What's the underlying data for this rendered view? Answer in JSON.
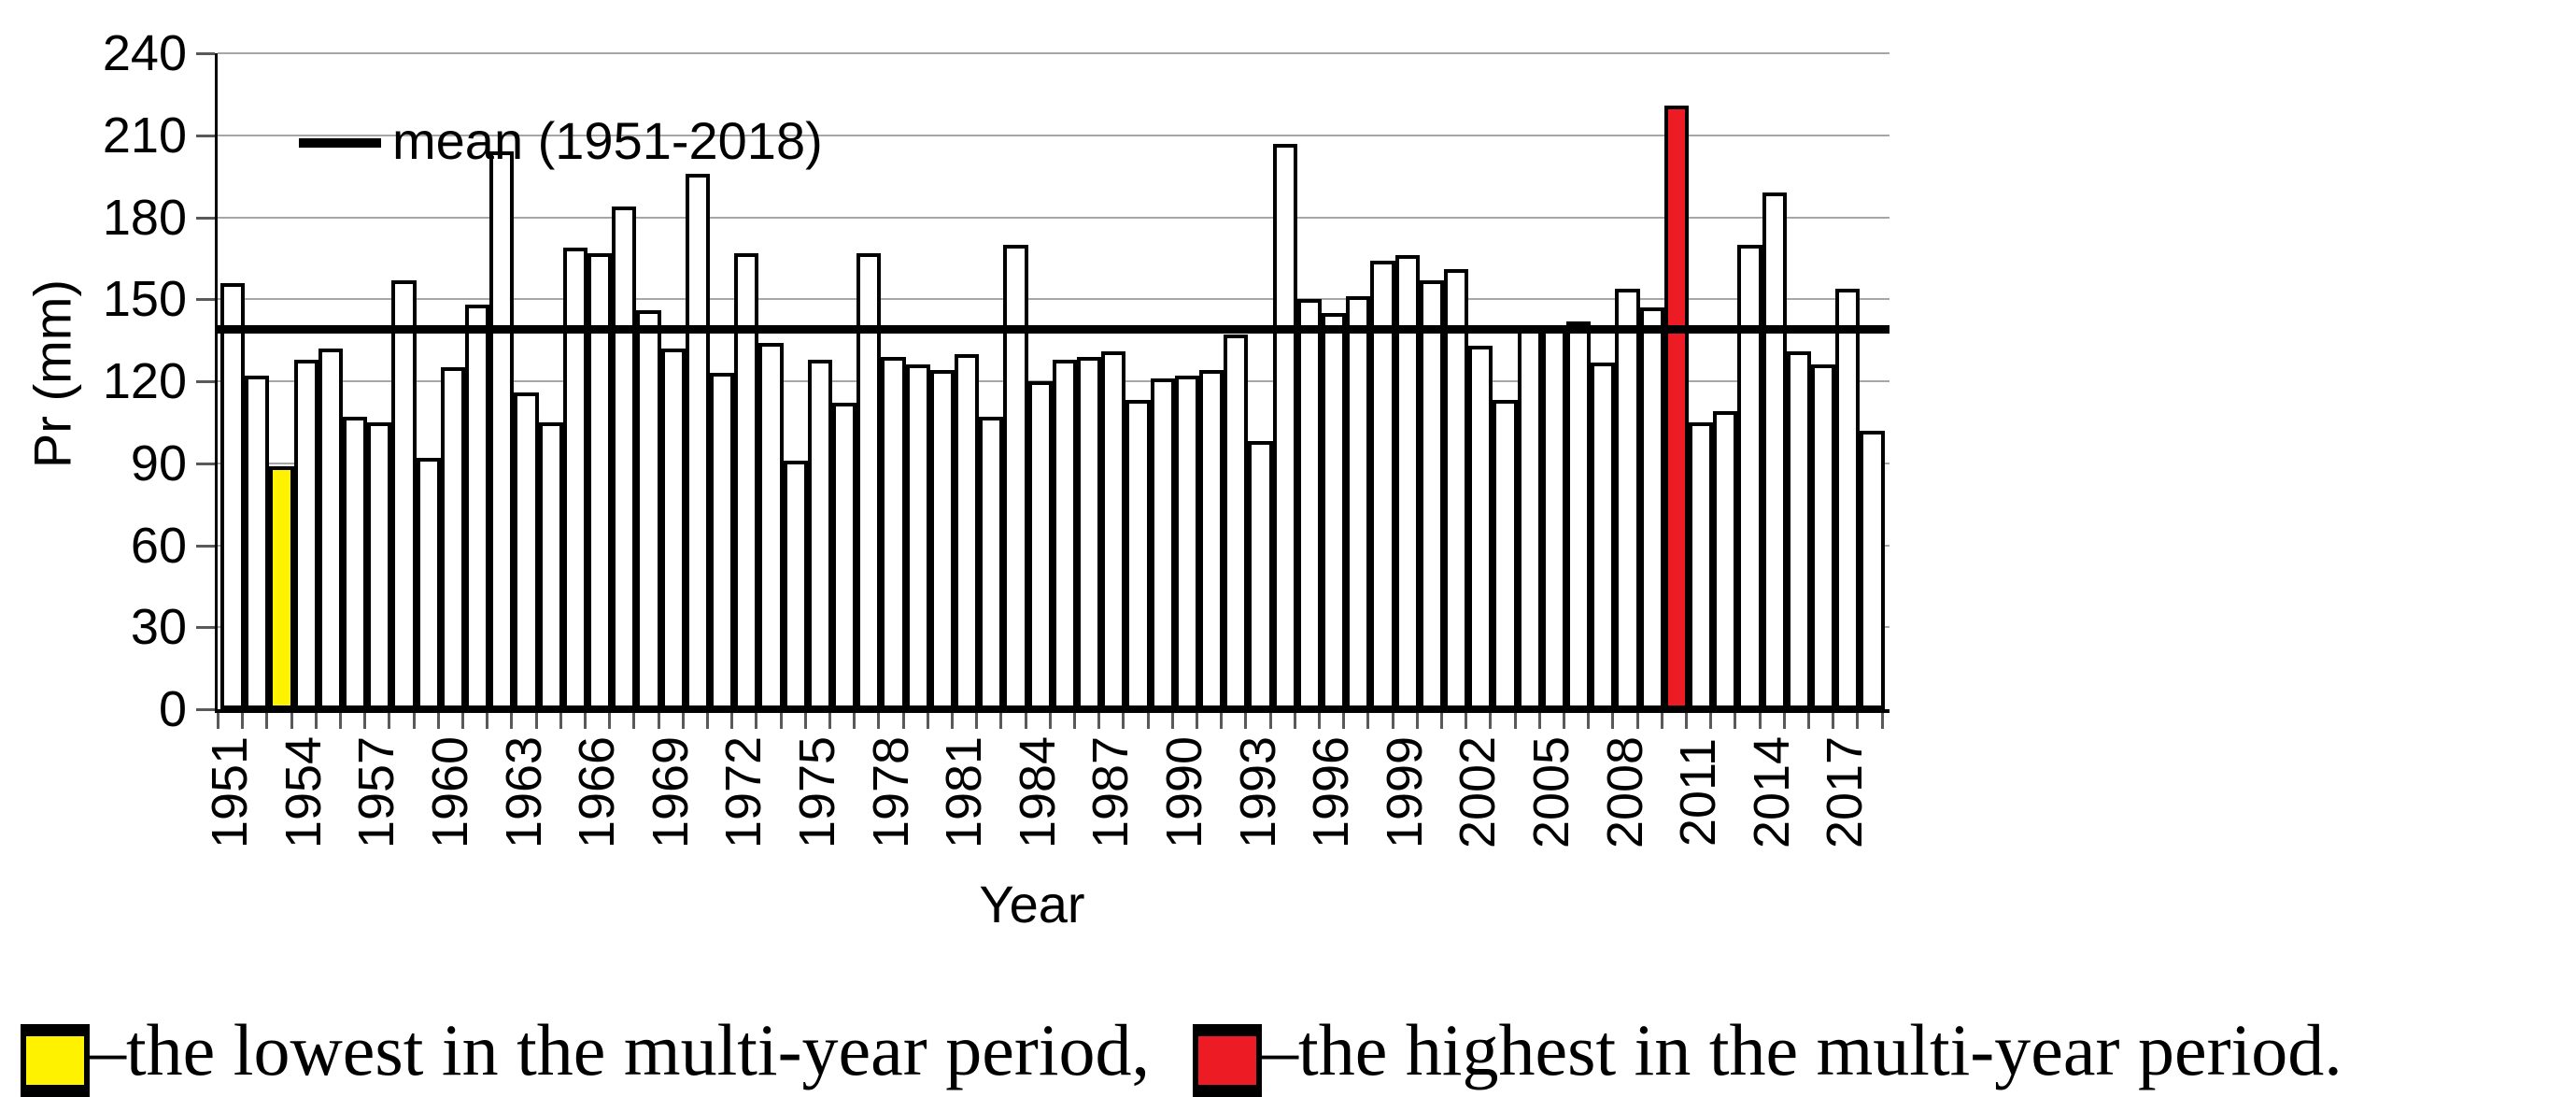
{
  "chart_data": {
    "type": "bar",
    "title": "",
    "xlabel": "Year",
    "ylabel": "Pr (mm)",
    "ylim": [
      0,
      240
    ],
    "ytick_step": 30,
    "grid": true,
    "legend_position": "top-left-inside",
    "bar_fill": "#FFFFFF",
    "bar_stroke": "#000000",
    "x_label_every": 3,
    "years": [
      1951,
      1952,
      1953,
      1954,
      1955,
      1956,
      1957,
      1958,
      1959,
      1960,
      1961,
      1962,
      1963,
      1964,
      1965,
      1966,
      1967,
      1968,
      1969,
      1970,
      1971,
      1972,
      1973,
      1974,
      1975,
      1976,
      1977,
      1978,
      1979,
      1980,
      1981,
      1982,
      1983,
      1984,
      1985,
      1986,
      1987,
      1988,
      1989,
      1990,
      1991,
      1992,
      1993,
      1994,
      1995,
      1996,
      1997,
      1998,
      1999,
      2000,
      2001,
      2002,
      2003,
      2004,
      2005,
      2006,
      2007,
      2008,
      2009,
      2010,
      2011,
      2012,
      2013,
      2014,
      2015,
      2016,
      2017,
      2018
    ],
    "values": [
      156,
      122,
      89,
      128,
      132,
      107,
      105,
      157,
      92,
      125,
      148,
      204,
      116,
      105,
      169,
      167,
      184,
      146,
      132,
      196,
      123,
      167,
      134,
      91,
      128,
      112,
      167,
      129,
      126,
      124,
      130,
      107,
      170,
      120,
      128,
      129,
      131,
      113,
      121,
      122,
      124,
      137,
      98,
      207,
      150,
      145,
      151,
      164,
      166,
      157,
      161,
      133,
      113,
      140,
      139,
      142,
      127,
      154,
      147,
      221,
      105,
      109,
      170,
      189,
      131,
      126,
      154,
      102
    ],
    "mean_value": 139,
    "mean_legend_label": "mean (1951-2018)",
    "highlight_lowest": {
      "year": 1953,
      "value": 89,
      "color": "#FFF200"
    },
    "highlight_highest": {
      "year": 2010,
      "value": 221,
      "color": "#ED1C24"
    }
  },
  "footer_legend": {
    "lowest_color": "#FFF200",
    "lowest_label": "–the lowest in the multi-year period,",
    "highest_color": "#ED1C24",
    "highest_label": "–the highest in the multi-year period."
  }
}
